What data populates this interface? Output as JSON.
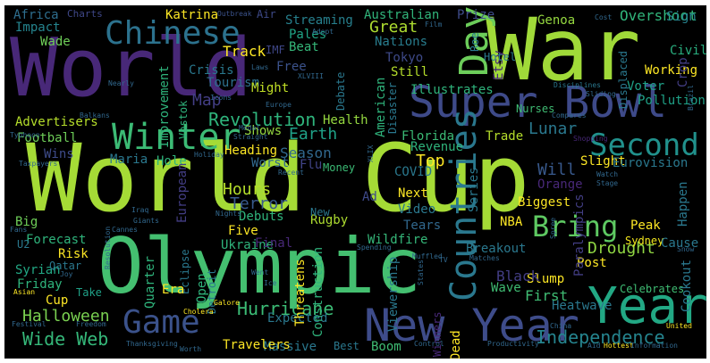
{
  "words": [
    {
      "text": "World",
      "color": "#482878"
    },
    {
      "text": "War",
      "color": "#a0da39"
    },
    {
      "text": "World Cup",
      "color": "#a5db36"
    },
    {
      "text": "Olympic",
      "color": "#44bf70"
    },
    {
      "text": "Super Bowl",
      "color": "#3e4a89"
    },
    {
      "text": "Chinese",
      "color": "#2c728e"
    },
    {
      "text": "Day",
      "color": "#6ccd5a"
    },
    {
      "text": "Winter",
      "color": "#3cbb75"
    },
    {
      "text": "Second",
      "color": "#21918c"
    },
    {
      "text": "Game",
      "color": "#3b528b"
    },
    {
      "text": "New Year",
      "color": "#3e4c8a"
    },
    {
      "text": "Year",
      "color": "#22a884"
    },
    {
      "text": "Countries",
      "color": "#2a788e"
    },
    {
      "text": "Bring",
      "color": "#5ec962"
    },
    {
      "text": "Independence",
      "color": "#25848e"
    },
    {
      "text": "Wide Web",
      "color": "#35b779"
    },
    {
      "text": "Halloween",
      "color": "#7ad151"
    },
    {
      "text": "Revolution",
      "color": "#2fb47c"
    },
    {
      "text": "Hurricane",
      "color": "#3bbb75"
    },
    {
      "text": "Drought",
      "color": "#90d743"
    },
    {
      "text": "Lunar",
      "color": "#2a788e"
    },
    {
      "text": "Season",
      "color": "#31688e"
    },
    {
      "text": "Earth",
      "color": "#1fa187"
    },
    {
      "text": "Hours",
      "color": "#b5de2b"
    },
    {
      "text": "Terror",
      "color": "#38598c"
    },
    {
      "text": "Map",
      "color": "#433e85"
    },
    {
      "text": "Tokyo",
      "color": "#3e4a89"
    },
    {
      "text": "Great",
      "color": "#addc30"
    },
    {
      "text": "Nations",
      "color": "#287d8e"
    },
    {
      "text": "Track",
      "color": "#fde725"
    },
    {
      "text": "Crisis",
      "color": "#2a788e"
    },
    {
      "text": "Tourism",
      "color": "#2d708e"
    },
    {
      "text": "Streaming",
      "color": "#27808e"
    },
    {
      "text": "Pales",
      "color": "#20a486"
    },
    {
      "text": "Beat",
      "color": "#35b779"
    },
    {
      "text": "IMF",
      "color": "#3f4788"
    },
    {
      "text": "Free",
      "color": "#3b528b"
    },
    {
      "text": "Might",
      "color": "#c0df25"
    },
    {
      "text": "Katrina",
      "color": "#fde725"
    },
    {
      "text": "Impact",
      "color": "#25848e"
    },
    {
      "text": "Wade",
      "color": "#6ece58"
    },
    {
      "text": "Wins",
      "color": "#3e4c8a"
    },
    {
      "text": "Africa",
      "color": "#2e6e8e"
    },
    {
      "text": "Charts",
      "color": "#3f4788"
    },
    {
      "text": "Outbreak",
      "color": "#3b528b"
    },
    {
      "text": "Air",
      "color": "#3e4a89"
    },
    {
      "text": "Australian",
      "color": "#31b57b"
    },
    {
      "text": "Prize",
      "color": "#3e4c8a"
    },
    {
      "text": "Genoa",
      "color": "#95d840"
    },
    {
      "text": "Cost",
      "color": "#31688e"
    },
    {
      "text": "Overshoot",
      "color": "#31b57b"
    },
    {
      "text": "Sign",
      "color": "#26828e"
    },
    {
      "text": "Civil",
      "color": "#29af7f"
    },
    {
      "text": "Working",
      "color": "#fde725"
    },
    {
      "text": "Voter",
      "color": "#1fa187"
    },
    {
      "text": "Pollution",
      "color": "#1fa187"
    },
    {
      "text": "Shows",
      "color": "#95d840"
    },
    {
      "text": "Health",
      "color": "#95d840"
    },
    {
      "text": "Florida",
      "color": "#3bbb75"
    },
    {
      "text": "Trade",
      "color": "#b5de2b"
    },
    {
      "text": "Revenue",
      "color": "#2fb47c"
    },
    {
      "text": "Top",
      "color": "#fde725"
    },
    {
      "text": "Will",
      "color": "#38598c"
    },
    {
      "text": "Slight",
      "color": "#fde725"
    },
    {
      "text": "Eurovision",
      "color": "#2a788e"
    },
    {
      "text": "Orange",
      "color": "#482878"
    },
    {
      "text": "Biggest",
      "color": "#fde725"
    },
    {
      "text": "Next",
      "color": "#fde725"
    },
    {
      "text": "Ad",
      "color": "#3e4a89"
    },
    {
      "text": "Video",
      "color": "#2a788e"
    },
    {
      "text": "Tears",
      "color": "#31688e"
    },
    {
      "text": "Peak",
      "color": "#fde725"
    },
    {
      "text": "Sydney",
      "color": "#f1e51d"
    },
    {
      "text": "Cause",
      "color": "#2a788e"
    },
    {
      "text": "Post",
      "color": "#fde725"
    },
    {
      "text": "Celebrates",
      "color": "#3fbc73"
    },
    {
      "text": "Slump",
      "color": "#fde725"
    },
    {
      "text": "Wave",
      "color": "#3fbc73"
    },
    {
      "text": "Heatwave",
      "color": "#2a788e"
    },
    {
      "text": "Breakout",
      "color": "#2a788e"
    },
    {
      "text": "Black",
      "color": "#433e85"
    },
    {
      "text": "First",
      "color": "#3fbc73"
    },
    {
      "text": "Football",
      "color": "#6ece58"
    },
    {
      "text": "Heading",
      "color": "#fde725"
    },
    {
      "text": "Worst",
      "color": "#31688e"
    },
    {
      "text": "Money",
      "color": "#3bbb75"
    },
    {
      "text": "Flu",
      "color": "#414487"
    },
    {
      "text": "Maria",
      "color": "#2a788e"
    },
    {
      "text": "Hole",
      "color": "#2fb47c"
    },
    {
      "text": "Advertisers",
      "color": "#b5de2b"
    },
    {
      "text": "Forecast",
      "color": "#2fb47c"
    },
    {
      "text": "Risk",
      "color": "#fde725"
    },
    {
      "text": "Big",
      "color": "#6ece58"
    },
    {
      "text": "Syrian",
      "color": "#22a884"
    },
    {
      "text": "Friday",
      "color": "#2fb47c"
    },
    {
      "text": "Cup",
      "color": "#fde725"
    },
    {
      "text": "Take",
      "color": "#1fa187"
    },
    {
      "text": "Qatar",
      "color": "#2a788e"
    },
    {
      "text": "Five",
      "color": "#fde725"
    },
    {
      "text": "Ukraine",
      "color": "#2fb47c"
    },
    {
      "text": "Final",
      "color": "#482878"
    },
    {
      "text": "Rugby",
      "color": "#addc30"
    },
    {
      "text": "Wildfire",
      "color": "#35b779"
    },
    {
      "text": "Expected",
      "color": "#2a788e"
    },
    {
      "text": "Massive",
      "color": "#2a788e"
    },
    {
      "text": "Travelers",
      "color": "#fde725"
    },
    {
      "text": "Best",
      "color": "#2a788e"
    },
    {
      "text": "Boom",
      "color": "#3fbc73"
    },
    {
      "text": "Dead",
      "color": "#fde725"
    },
    {
      "text": "Winners",
      "color": "#482878"
    },
    {
      "text": "Debuts",
      "color": "#2fb47c"
    },
    {
      "text": "New",
      "color": "#2a788e"
    },
    {
      "text": "Illustrates",
      "color": "#2fb47c"
    },
    {
      "text": "Nurses",
      "color": "#3fbc73"
    },
    {
      "text": "Still",
      "color": "#b5de2b"
    },
    {
      "text": "American",
      "color": "#2fb47c"
    },
    {
      "text": "Disaster",
      "color": "#2a788e"
    },
    {
      "text": "Series",
      "color": "#2a788e"
    },
    {
      "text": "Paralympics",
      "color": "#433e85"
    },
    {
      "text": "Displaced",
      "color": "#2a788e"
    },
    {
      "text": "Improvement",
      "color": "#2fb47c"
    },
    {
      "text": "Vostok",
      "color": "#2fb47c"
    },
    {
      "text": "European",
      "color": "#433e85"
    },
    {
      "text": "Open",
      "color": "#2fb47c"
    },
    {
      "text": "Detroit",
      "color": "#2a788e"
    },
    {
      "text": "Eclipse",
      "color": "#2a788e"
    },
    {
      "text": "Quarter",
      "color": "#2fb47c"
    },
    {
      "text": "Era",
      "color": "#fde725"
    },
    {
      "text": "Threatens",
      "color": "#fde725"
    },
    {
      "text": "Construction",
      "color": "#2fb47c"
    },
    {
      "text": "Viewership",
      "color": "#2a788e"
    },
    {
      "text": "Etsy",
      "color": "#482878"
    },
    {
      "text": "Hotel",
      "color": "#2a788e"
    },
    {
      "text": "Roe",
      "color": "#2a788e"
    },
    {
      "text": "Crop",
      "color": "#433e85"
    },
    {
      "text": "Happen",
      "color": "#2a788e"
    },
    {
      "text": "Cookout",
      "color": "#2a788e"
    },
    {
      "text": "U2",
      "color": "#2a788e"
    },
    {
      "text": "COVID",
      "color": "#2a788e"
    },
    {
      "text": "Debate",
      "color": "#2a788e"
    },
    {
      "text": "NBA",
      "color": "#fde725"
    },
    {
      "text": "Nearly",
      "color": "#31688e"
    },
    {
      "text": "Laws",
      "color": "#31688e"
    },
    {
      "text": "XLVIII",
      "color": "#31688e"
    },
    {
      "text": "Adopt",
      "color": "#31688e"
    },
    {
      "text": "Disciplines",
      "color": "#2a788e"
    },
    {
      "text": "Sliding",
      "color": "#31688e"
    },
    {
      "text": "Compares",
      "color": "#31688e"
    },
    {
      "text": "Brazil",
      "color": "#31688e"
    },
    {
      "text": "Shopping",
      "color": "#482878"
    },
    {
      "text": "Typhoon",
      "color": "#31688e"
    },
    {
      "text": "Balkans",
      "color": "#31688e"
    },
    {
      "text": "Taxpayers",
      "color": "#31688e"
    },
    {
      "text": "Medal",
      "color": "#31688e"
    },
    {
      "text": "Holiday",
      "color": "#31688e"
    },
    {
      "text": "Recent",
      "color": "#31688e"
    },
    {
      "text": "Europe",
      "color": "#31688e"
    },
    {
      "text": "XLIX",
      "color": "#31688e"
    },
    {
      "text": "Watch",
      "color": "#31688e"
    },
    {
      "text": "Stage",
      "color": "#31688e"
    },
    {
      "text": "Iraq",
      "color": "#31688e"
    },
    {
      "text": "Giants",
      "color": "#31688e"
    },
    {
      "text": "Nights",
      "color": "#31688e"
    },
    {
      "text": "Fans",
      "color": "#31688e"
    },
    {
      "text": "Resolution",
      "color": "#31688e"
    },
    {
      "text": "Spending",
      "color": "#31688e"
    },
    {
      "text": "Muffled",
      "color": "#31688e"
    },
    {
      "text": "Matches",
      "color": "#31688e"
    },
    {
      "text": "Spree",
      "color": "#31688e"
    },
    {
      "text": "Snow",
      "color": "#31688e"
    },
    {
      "text": "Joy",
      "color": "#31688e"
    },
    {
      "text": "States",
      "color": "#31688e"
    },
    {
      "text": "Asian",
      "color": "#fde725"
    },
    {
      "text": "Cholera",
      "color": "#fde725"
    },
    {
      "text": "Galore",
      "color": "#fde725"
    },
    {
      "text": "Festival",
      "color": "#31688e"
    },
    {
      "text": "Freedom",
      "color": "#31688e"
    },
    {
      "text": "Thanksgiving",
      "color": "#31688e"
    },
    {
      "text": "Control",
      "color": "#31688e"
    },
    {
      "text": "Productivity",
      "color": "#31688e"
    },
    {
      "text": "Hottest",
      "color": "#fde725"
    },
    {
      "text": "Information",
      "color": "#31688e"
    },
    {
      "text": "United",
      "color": "#fde725"
    },
    {
      "text": "China",
      "color": "#31688e"
    },
    {
      "text": "Aid",
      "color": "#31688e"
    },
    {
      "text": "Went",
      "color": "#31688e"
    },
    {
      "text": "Film",
      "color": "#31688e"
    },
    {
      "text": "Icons",
      "color": "#31688e"
    },
    {
      "text": "Straight",
      "color": "#31688e"
    },
    {
      "text": "Worth",
      "color": "#31688e"
    },
    {
      "text": "Ice",
      "color": "#31688e"
    },
    {
      "text": "Cannes",
      "color": "#31688e"
    },
    {
      "text": "TV",
      "color": "#31688e"
    }
  ]
}
